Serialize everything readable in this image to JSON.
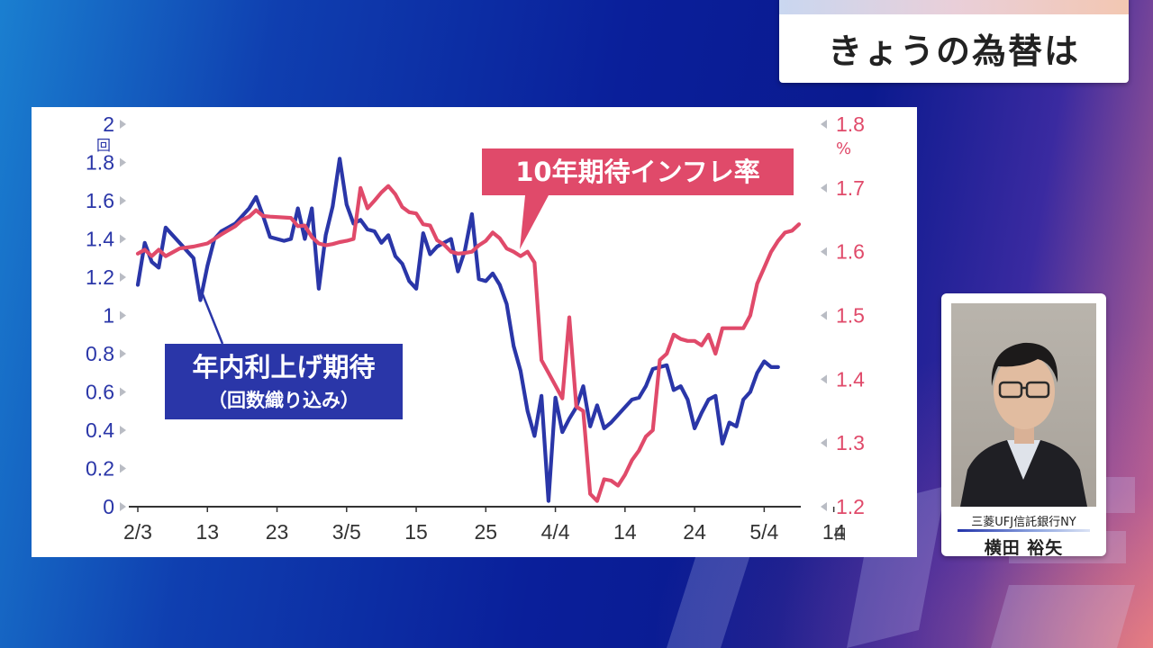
{
  "title": "きょうの為替は",
  "person": {
    "company": "三菱UFJ信託銀行NY",
    "name": "横田 裕矢"
  },
  "chart_data": {
    "type": "line",
    "x_tick_labels": [
      "2/3",
      "13",
      "23",
      "3/5",
      "15",
      "25",
      "4/4",
      "14",
      "24",
      "5/4",
      "14"
    ],
    "x_unit": "日",
    "y_left": {
      "unit": "回",
      "ticks": [
        "0",
        "0.2",
        "0.4",
        "0.6",
        "0.8",
        "1",
        "1.2",
        "1.4",
        "1.6",
        "1.8",
        "2"
      ],
      "range": [
        0,
        2
      ]
    },
    "y_right": {
      "unit": "%",
      "ticks": [
        "1.2",
        "1.3",
        "1.4",
        "1.5",
        "1.6",
        "1.7",
        "1.8"
      ],
      "range": [
        1.2,
        1.8
      ]
    },
    "series": [
      {
        "name": "年内利上げ期待",
        "sub_label": "（回数織り込み）",
        "axis": "left",
        "color": "#2a36a8",
        "points": [
          [
            0,
            1.16
          ],
          [
            1,
            1.38
          ],
          [
            2,
            1.28
          ],
          [
            3,
            1.25
          ],
          [
            4,
            1.46
          ],
          [
            5,
            1.42
          ],
          [
            6,
            1.38
          ],
          [
            7,
            1.34
          ],
          [
            8,
            1.3
          ],
          [
            9,
            1.08
          ],
          [
            10,
            1.26
          ],
          [
            11,
            1.4
          ],
          [
            12,
            1.44
          ],
          [
            14,
            1.48
          ],
          [
            16,
            1.56
          ],
          [
            17,
            1.62
          ],
          [
            18,
            1.52
          ],
          [
            19,
            1.41
          ],
          [
            21,
            1.39
          ],
          [
            22,
            1.4
          ],
          [
            23,
            1.56
          ],
          [
            24,
            1.4
          ],
          [
            25,
            1.56
          ],
          [
            26,
            1.14
          ],
          [
            27,
            1.42
          ],
          [
            28,
            1.57
          ],
          [
            29,
            1.82
          ],
          [
            30,
            1.58
          ],
          [
            31,
            1.48
          ],
          [
            32,
            1.5
          ],
          [
            33,
            1.45
          ],
          [
            34,
            1.44
          ],
          [
            35,
            1.38
          ],
          [
            36,
            1.42
          ],
          [
            37,
            1.31
          ],
          [
            38,
            1.27
          ],
          [
            39,
            1.18
          ],
          [
            40,
            1.14
          ],
          [
            41,
            1.43
          ],
          [
            42,
            1.32
          ],
          [
            43,
            1.36
          ],
          [
            45,
            1.4
          ],
          [
            46,
            1.23
          ],
          [
            47,
            1.34
          ],
          [
            48,
            1.53
          ],
          [
            49,
            1.19
          ],
          [
            50,
            1.18
          ],
          [
            51,
            1.22
          ],
          [
            52,
            1.16
          ],
          [
            53,
            1.06
          ],
          [
            54,
            0.84
          ],
          [
            55,
            0.71
          ],
          [
            56,
            0.5
          ],
          [
            57,
            0.37
          ],
          [
            58,
            0.58
          ],
          [
            59,
            0.03
          ],
          [
            60,
            0.57
          ],
          [
            61,
            0.39
          ],
          [
            62,
            0.46
          ],
          [
            63,
            0.52
          ],
          [
            64,
            0.63
          ],
          [
            65,
            0.42
          ],
          [
            66,
            0.53
          ],
          [
            67,
            0.41
          ],
          [
            68,
            0.44
          ],
          [
            69,
            0.48
          ],
          [
            70,
            0.52
          ],
          [
            71,
            0.56
          ],
          [
            72,
            0.57
          ],
          [
            73,
            0.63
          ],
          [
            74,
            0.72
          ],
          [
            75,
            0.73
          ],
          [
            76,
            0.74
          ],
          [
            77,
            0.61
          ],
          [
            78,
            0.63
          ],
          [
            79,
            0.56
          ],
          [
            80,
            0.41
          ],
          [
            81,
            0.49
          ],
          [
            82,
            0.56
          ],
          [
            83,
            0.58
          ],
          [
            84,
            0.33
          ],
          [
            85,
            0.44
          ],
          [
            86,
            0.42
          ],
          [
            87,
            0.56
          ],
          [
            88,
            0.6
          ],
          [
            89,
            0.7
          ],
          [
            90,
            0.76
          ],
          [
            91,
            0.73
          ],
          [
            92,
            0.73
          ]
        ]
      },
      {
        "name": "10年期待インフレ率",
        "axis": "right",
        "color": "#e04a6a",
        "points": [
          [
            0,
            1.597
          ],
          [
            1,
            1.603
          ],
          [
            2,
            1.593
          ],
          [
            3,
            1.603
          ],
          [
            4,
            1.593
          ],
          [
            6,
            1.605
          ],
          [
            8,
            1.608
          ],
          [
            10,
            1.613
          ],
          [
            11,
            1.62
          ],
          [
            12,
            1.627
          ],
          [
            14,
            1.64
          ],
          [
            15,
            1.65
          ],
          [
            16,
            1.655
          ],
          [
            17,
            1.665
          ],
          [
            18,
            1.656
          ],
          [
            19,
            1.655
          ],
          [
            22,
            1.653
          ],
          [
            23,
            1.64
          ],
          [
            24,
            1.641
          ],
          [
            25,
            1.623
          ],
          [
            26,
            1.613
          ],
          [
            27,
            1.61
          ],
          [
            28,
            1.612
          ],
          [
            29,
            1.615
          ],
          [
            30,
            1.617
          ],
          [
            31,
            1.62
          ],
          [
            32,
            1.7
          ],
          [
            33,
            1.668
          ],
          [
            34,
            1.68
          ],
          [
            35,
            1.693
          ],
          [
            36,
            1.703
          ],
          [
            37,
            1.69
          ],
          [
            38,
            1.67
          ],
          [
            39,
            1.662
          ],
          [
            40,
            1.66
          ],
          [
            41,
            1.643
          ],
          [
            42,
            1.641
          ],
          [
            43,
            1.618
          ],
          [
            44,
            1.611
          ],
          [
            45,
            1.6
          ],
          [
            46,
            1.597
          ],
          [
            47,
            1.598
          ],
          [
            48,
            1.6
          ],
          [
            49,
            1.61
          ],
          [
            50,
            1.617
          ],
          [
            51,
            1.63
          ],
          [
            52,
            1.621
          ],
          [
            53,
            1.605
          ],
          [
            54,
            1.6
          ],
          [
            55,
            1.593
          ],
          [
            56,
            1.6
          ],
          [
            57,
            1.583
          ],
          [
            58,
            1.43
          ],
          [
            59,
            1.41
          ],
          [
            60,
            1.39
          ],
          [
            61,
            1.37
          ],
          [
            62,
            1.497
          ],
          [
            63,
            1.357
          ],
          [
            64,
            1.35
          ],
          [
            65,
            1.22
          ],
          [
            66,
            1.209
          ],
          [
            67,
            1.243
          ],
          [
            68,
            1.241
          ],
          [
            69,
            1.233
          ],
          [
            70,
            1.25
          ],
          [
            71,
            1.273
          ],
          [
            72,
            1.288
          ],
          [
            73,
            1.31
          ],
          [
            74,
            1.32
          ],
          [
            75,
            1.43
          ],
          [
            76,
            1.44
          ],
          [
            77,
            1.47
          ],
          [
            78,
            1.463
          ],
          [
            79,
            1.46
          ],
          [
            80,
            1.46
          ],
          [
            81,
            1.453
          ],
          [
            82,
            1.47
          ],
          [
            83,
            1.44
          ],
          [
            84,
            1.48
          ],
          [
            85,
            1.48
          ],
          [
            86,
            1.48
          ],
          [
            87,
            1.48
          ],
          [
            88,
            1.5
          ],
          [
            89,
            1.55
          ],
          [
            90,
            1.575
          ],
          [
            91,
            1.6
          ],
          [
            92,
            1.617
          ],
          [
            93,
            1.63
          ],
          [
            94,
            1.633
          ],
          [
            95,
            1.643
          ]
        ]
      }
    ],
    "x_count": 96,
    "grid": false
  }
}
